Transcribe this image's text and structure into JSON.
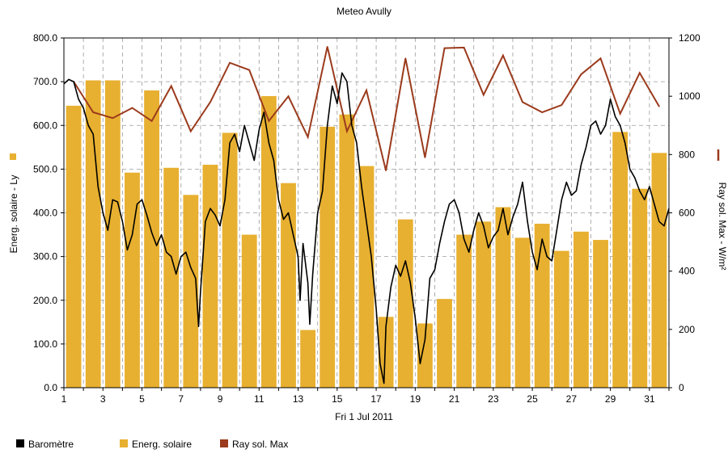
{
  "chart_data": {
    "type": "bar",
    "title": "Meteo  Avully",
    "xlabel": "Fri 1 Jul 2011",
    "ylabel_left": "Energ. solaire - Ly",
    "ylabel_right": "Ray sol. Max - W/m²",
    "ylim_left": [
      0,
      800
    ],
    "ylim_right": [
      0,
      1200
    ],
    "y_ticks_left": [
      "0.0",
      "100.0",
      "200.0",
      "300.0",
      "400.0",
      "500.0",
      "600.0",
      "700.0",
      "800.0"
    ],
    "y_ticks_right": [
      "0",
      "200",
      "400",
      "600",
      "800",
      "1000",
      "1200"
    ],
    "x_ticks": [
      "1",
      "3",
      "5",
      "7",
      "9",
      "11",
      "13",
      "15",
      "17",
      "19",
      "21",
      "23",
      "25",
      "27",
      "29",
      "31"
    ],
    "days": [
      1,
      2,
      3,
      4,
      5,
      6,
      7,
      8,
      9,
      10,
      11,
      12,
      13,
      14,
      15,
      16,
      17,
      18,
      19,
      20,
      21,
      22,
      23,
      24,
      25,
      26,
      27,
      28,
      29,
      30,
      31,
      32
    ],
    "grid": true,
    "series": [
      {
        "name": "Energ. solaire",
        "kind": "bar",
        "axis": "left",
        "color": "#e8b030",
        "values": [
          645,
          703,
          703,
          492,
          680,
          503,
          441,
          510,
          583,
          350,
          667,
          468,
          132,
          597,
          625,
          507,
          162,
          385,
          147,
          203,
          350,
          380,
          413,
          343,
          375,
          313,
          357,
          338,
          585,
          455,
          537
        ]
      },
      {
        "name": "Ray sol. Max",
        "kind": "line",
        "axis": "right",
        "color": "#9b3a1c",
        "values": [
          1050,
          945,
          925,
          960,
          915,
          1035,
          880,
          980,
          1115,
          1090,
          915,
          1000,
          860,
          1170,
          880,
          1020,
          745,
          1130,
          790,
          1165,
          1167,
          1005,
          1140,
          980,
          945,
          970,
          1075,
          1130,
          940,
          1080,
          965
        ]
      },
      {
        "name": "Baromètre",
        "kind": "line",
        "axis": "left",
        "color": "#000000",
        "points": [
          [
            1.0,
            695
          ],
          [
            1.25,
            705
          ],
          [
            1.5,
            700
          ],
          [
            1.75,
            660
          ],
          [
            2.0,
            640
          ],
          [
            2.25,
            600
          ],
          [
            2.5,
            580
          ],
          [
            2.75,
            460
          ],
          [
            3.0,
            400
          ],
          [
            3.25,
            360
          ],
          [
            3.5,
            430
          ],
          [
            3.75,
            425
          ],
          [
            4.0,
            380
          ],
          [
            4.25,
            315
          ],
          [
            4.5,
            350
          ],
          [
            4.75,
            420
          ],
          [
            5.0,
            430
          ],
          [
            5.25,
            395
          ],
          [
            5.5,
            355
          ],
          [
            5.75,
            325
          ],
          [
            6.0,
            350
          ],
          [
            6.25,
            310
          ],
          [
            6.5,
            300
          ],
          [
            6.75,
            260
          ],
          [
            7.0,
            300
          ],
          [
            7.25,
            310
          ],
          [
            7.5,
            275
          ],
          [
            7.75,
            250
          ],
          [
            7.9,
            140
          ],
          [
            8.0,
            220
          ],
          [
            8.25,
            380
          ],
          [
            8.5,
            410
          ],
          [
            8.75,
            395
          ],
          [
            9.0,
            370
          ],
          [
            9.25,
            430
          ],
          [
            9.5,
            560
          ],
          [
            9.75,
            580
          ],
          [
            10.0,
            540
          ],
          [
            10.25,
            600
          ],
          [
            10.5,
            560
          ],
          [
            10.75,
            520
          ],
          [
            11.0,
            590
          ],
          [
            11.25,
            630
          ],
          [
            11.5,
            560
          ],
          [
            11.75,
            520
          ],
          [
            12.0,
            430
          ],
          [
            12.25,
            385
          ],
          [
            12.5,
            400
          ],
          [
            12.75,
            350
          ],
          [
            13.0,
            300
          ],
          [
            13.1,
            200
          ],
          [
            13.25,
            330
          ],
          [
            13.5,
            240
          ],
          [
            13.6,
            145
          ],
          [
            13.75,
            260
          ],
          [
            14.0,
            400
          ],
          [
            14.25,
            450
          ],
          [
            14.5,
            600
          ],
          [
            14.75,
            690
          ],
          [
            15.0,
            650
          ],
          [
            15.25,
            720
          ],
          [
            15.5,
            700
          ],
          [
            15.75,
            600
          ],
          [
            16.0,
            560
          ],
          [
            16.25,
            460
          ],
          [
            16.5,
            380
          ],
          [
            16.75,
            300
          ],
          [
            17.0,
            180
          ],
          [
            17.2,
            55
          ],
          [
            17.4,
            10
          ],
          [
            17.5,
            140
          ],
          [
            17.75,
            230
          ],
          [
            18.0,
            280
          ],
          [
            18.25,
            255
          ],
          [
            18.5,
            290
          ],
          [
            18.75,
            240
          ],
          [
            19.0,
            160
          ],
          [
            19.25,
            55
          ],
          [
            19.5,
            110
          ],
          [
            19.75,
            250
          ],
          [
            20.0,
            270
          ],
          [
            20.25,
            330
          ],
          [
            20.5,
            380
          ],
          [
            20.75,
            420
          ],
          [
            21.0,
            430
          ],
          [
            21.25,
            400
          ],
          [
            21.5,
            340
          ],
          [
            21.75,
            310
          ],
          [
            22.0,
            360
          ],
          [
            22.25,
            400
          ],
          [
            22.5,
            370
          ],
          [
            22.75,
            320
          ],
          [
            23.0,
            345
          ],
          [
            23.25,
            360
          ],
          [
            23.5,
            410
          ],
          [
            23.75,
            350
          ],
          [
            24.0,
            390
          ],
          [
            24.25,
            420
          ],
          [
            24.5,
            470
          ],
          [
            24.75,
            380
          ],
          [
            25.0,
            310
          ],
          [
            25.25,
            270
          ],
          [
            25.5,
            340
          ],
          [
            25.75,
            300
          ],
          [
            26.0,
            290
          ],
          [
            26.25,
            360
          ],
          [
            26.5,
            430
          ],
          [
            26.75,
            470
          ],
          [
            27.0,
            440
          ],
          [
            27.25,
            450
          ],
          [
            27.5,
            510
          ],
          [
            27.75,
            550
          ],
          [
            28.0,
            600
          ],
          [
            28.25,
            610
          ],
          [
            28.5,
            580
          ],
          [
            28.75,
            600
          ],
          [
            29.0,
            660
          ],
          [
            29.25,
            620
          ],
          [
            29.5,
            600
          ],
          [
            29.75,
            560
          ],
          [
            30.0,
            500
          ],
          [
            30.25,
            480
          ],
          [
            30.5,
            450
          ],
          [
            30.75,
            430
          ],
          [
            31.0,
            460
          ],
          [
            31.25,
            420
          ],
          [
            31.5,
            380
          ],
          [
            31.75,
            370
          ],
          [
            32.0,
            410
          ]
        ]
      }
    ],
    "legend": {
      "position": "bottom-left",
      "items": [
        {
          "label": "Baromètre",
          "color": "#000000"
        },
        {
          "label": "Energ. solaire",
          "color": "#e8b030"
        },
        {
          "label": "Ray sol. Max",
          "color": "#9b3a1c"
        }
      ]
    },
    "left_axis_swatch_color": "#e8b030",
    "right_axis_swatch_color": "#9b3a1c"
  }
}
